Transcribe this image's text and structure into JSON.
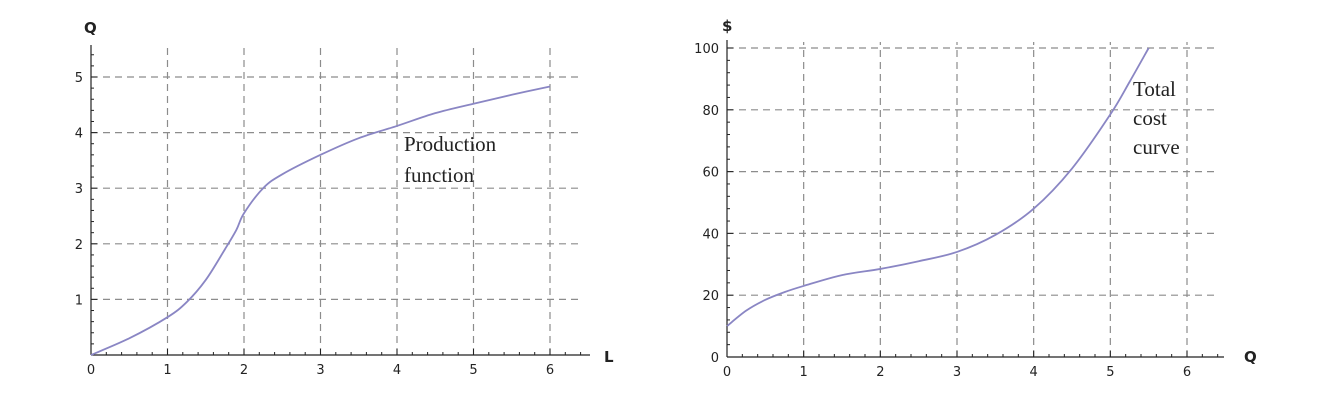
{
  "chart_data": [
    {
      "type": "line",
      "xlabel": "L",
      "ylabel": "Q",
      "xlim": [
        0,
        6.5
      ],
      "ylim": [
        0,
        5.5
      ],
      "x_ticks": [
        "0",
        "1",
        "2",
        "3",
        "4",
        "5",
        "6"
      ],
      "y_ticks": [
        "1",
        "2",
        "3",
        "4",
        "5"
      ],
      "grid": true,
      "annotation": [
        "Production",
        "function"
      ],
      "series": [
        {
          "x": [
            0,
            0.5,
            1.0,
            1.25,
            1.5,
            1.75,
            1.9,
            2.0,
            2.25,
            2.5,
            3.0,
            3.5,
            4.0,
            4.5,
            5.0,
            5.5,
            6.0
          ],
          "y": [
            0,
            0.3,
            0.68,
            0.95,
            1.35,
            1.9,
            2.25,
            2.55,
            3.0,
            3.25,
            3.6,
            3.9,
            4.12,
            4.35,
            4.52,
            4.68,
            4.83
          ]
        }
      ]
    },
    {
      "type": "line",
      "xlabel": "Q",
      "ylabel": "$",
      "xlim": [
        0,
        6.5
      ],
      "ylim": [
        0,
        100
      ],
      "x_ticks": [
        "0",
        "1",
        "2",
        "3",
        "4",
        "5",
        "6"
      ],
      "y_ticks": [
        "0",
        "20",
        "40",
        "60",
        "80",
        "100"
      ],
      "grid": true,
      "annotation": [
        "Total",
        "cost",
        "curve"
      ],
      "series": [
        {
          "x": [
            0,
            0.25,
            0.5,
            0.75,
            1.0,
            1.5,
            2.0,
            2.5,
            3.0,
            3.5,
            4.0,
            4.5,
            5.0,
            5.25,
            5.5
          ],
          "y": [
            10,
            15,
            18.5,
            21,
            23,
            26.5,
            28.5,
            31,
            34,
            39.5,
            48,
            61,
            78.5,
            89,
            100
          ]
        }
      ]
    }
  ]
}
